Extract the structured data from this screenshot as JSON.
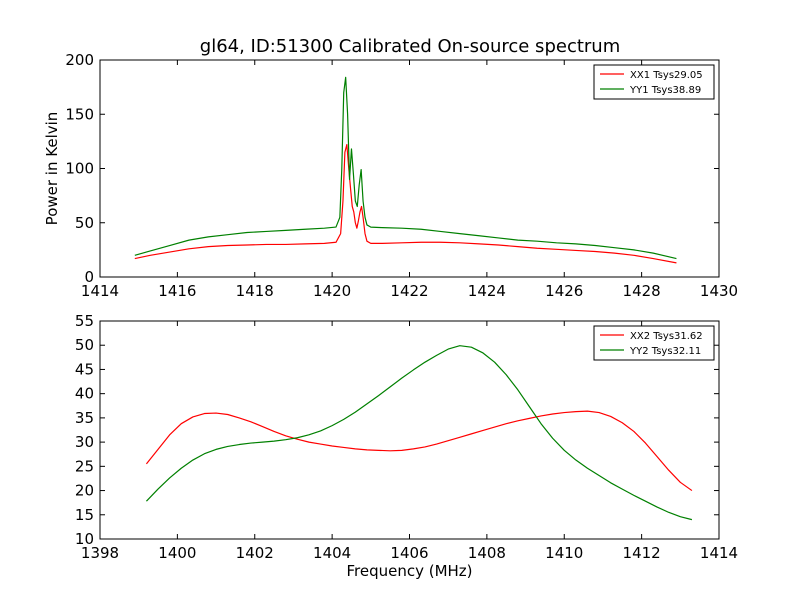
{
  "figure": {
    "title": "gl64, ID:51300 Calibrated On-source spectrum"
  },
  "chart_data": [
    {
      "type": "line",
      "title": "gl64, ID:51300 Calibrated On-source spectrum",
      "xlabel": "",
      "ylabel": "Power in Kelvin",
      "xlim": [
        1414,
        1430
      ],
      "ylim": [
        0,
        200
      ],
      "xticks": [
        1414,
        1416,
        1418,
        1420,
        1422,
        1424,
        1426,
        1428,
        1430
      ],
      "yticks": [
        0,
        50,
        100,
        150,
        200
      ],
      "grid": false,
      "legend_position": "top-right",
      "series": [
        {
          "name": "XX1 Tsys29.05",
          "color": "#ff0000",
          "x": [
            1414.9,
            1415.3,
            1415.8,
            1416.3,
            1416.8,
            1417.3,
            1417.8,
            1418.3,
            1418.8,
            1419.3,
            1419.8,
            1420.1,
            1420.22,
            1420.28,
            1420.33,
            1420.38,
            1420.43,
            1420.48,
            1420.52,
            1420.56,
            1420.6,
            1420.64,
            1420.68,
            1420.72,
            1420.76,
            1420.8,
            1420.85,
            1420.9,
            1421.0,
            1421.3,
            1421.8,
            1422.3,
            1422.8,
            1423.3,
            1423.8,
            1424.3,
            1424.8,
            1425.3,
            1425.8,
            1426.3,
            1426.8,
            1427.3,
            1427.8,
            1428.3,
            1428.9
          ],
          "y": [
            17,
            20,
            23,
            26,
            28,
            29,
            29.5,
            30,
            30,
            30.5,
            31,
            32,
            40,
            70,
            115,
            122,
            100,
            80,
            65,
            60,
            50,
            45,
            52,
            60,
            65,
            55,
            40,
            33,
            31,
            31,
            31.5,
            32,
            32,
            31.5,
            30.5,
            29.5,
            28,
            26.5,
            25.5,
            24.5,
            23.5,
            22,
            20,
            17,
            13
          ]
        },
        {
          "name": "YY1 Tsys38.89",
          "color": "#008000",
          "x": [
            1414.9,
            1415.3,
            1415.8,
            1416.3,
            1416.8,
            1417.3,
            1417.8,
            1418.3,
            1418.8,
            1419.3,
            1419.8,
            1420.1,
            1420.2,
            1420.25,
            1420.3,
            1420.35,
            1420.4,
            1420.45,
            1420.5,
            1420.55,
            1420.6,
            1420.65,
            1420.7,
            1420.75,
            1420.8,
            1420.85,
            1420.9,
            1421.0,
            1421.3,
            1421.8,
            1422.3,
            1422.8,
            1423.3,
            1423.8,
            1424.3,
            1424.8,
            1425.3,
            1425.8,
            1426.3,
            1426.8,
            1427.3,
            1427.8,
            1428.3,
            1428.9
          ],
          "y": [
            20,
            24,
            29,
            34,
            37,
            39,
            41,
            42,
            43,
            44,
            45,
            46,
            55,
            100,
            170,
            184,
            150,
            90,
            118,
            95,
            70,
            65,
            85,
            99,
            70,
            55,
            48,
            46,
            45.5,
            45,
            44,
            42,
            40,
            38,
            36,
            34,
            33,
            31.5,
            30.5,
            29,
            27,
            25,
            22,
            17
          ]
        }
      ]
    },
    {
      "type": "line",
      "title": "",
      "xlabel": "Frequency (MHz)",
      "ylabel": "",
      "xlim": [
        1398,
        1414
      ],
      "ylim": [
        10,
        55
      ],
      "xticks": [
        1398,
        1400,
        1402,
        1404,
        1406,
        1408,
        1410,
        1412,
        1414
      ],
      "yticks": [
        10,
        15,
        20,
        25,
        30,
        35,
        40,
        45,
        50,
        55
      ],
      "grid": false,
      "legend_position": "top-right",
      "series": [
        {
          "name": "XX2 Tsys31.62",
          "color": "#ff0000",
          "x": [
            1399.2,
            1399.5,
            1399.8,
            1400.1,
            1400.4,
            1400.7,
            1401.0,
            1401.3,
            1401.6,
            1401.9,
            1402.2,
            1402.5,
            1402.8,
            1403.1,
            1403.4,
            1403.7,
            1404.0,
            1404.3,
            1404.6,
            1404.9,
            1405.2,
            1405.5,
            1405.8,
            1406.1,
            1406.4,
            1406.7,
            1407.0,
            1407.3,
            1407.6,
            1407.9,
            1408.2,
            1408.5,
            1408.8,
            1409.1,
            1409.4,
            1409.7,
            1410.0,
            1410.3,
            1410.6,
            1410.9,
            1411.2,
            1411.5,
            1411.8,
            1412.1,
            1412.4,
            1412.7,
            1413.0,
            1413.3
          ],
          "y": [
            25.5,
            28.5,
            31.5,
            33.8,
            35.2,
            35.9,
            36.0,
            35.7,
            35.0,
            34.2,
            33.2,
            32.2,
            31.3,
            30.6,
            30.0,
            29.6,
            29.2,
            28.9,
            28.6,
            28.4,
            28.3,
            28.2,
            28.3,
            28.6,
            29.0,
            29.6,
            30.3,
            31.0,
            31.7,
            32.4,
            33.1,
            33.8,
            34.4,
            34.9,
            35.4,
            35.8,
            36.1,
            36.3,
            36.4,
            36.1,
            35.3,
            34.0,
            32.2,
            29.8,
            27.0,
            24.2,
            21.7,
            20.0
          ]
        },
        {
          "name": "YY2 Tsys32.11",
          "color": "#008000",
          "x": [
            1399.2,
            1399.5,
            1399.8,
            1400.1,
            1400.4,
            1400.7,
            1401.0,
            1401.3,
            1401.6,
            1401.9,
            1402.2,
            1402.5,
            1402.8,
            1403.1,
            1403.4,
            1403.7,
            1404.0,
            1404.3,
            1404.6,
            1404.9,
            1405.2,
            1405.5,
            1405.8,
            1406.1,
            1406.4,
            1406.7,
            1407.0,
            1407.3,
            1407.6,
            1407.9,
            1408.2,
            1408.5,
            1408.8,
            1409.1,
            1409.4,
            1409.7,
            1410.0,
            1410.3,
            1410.6,
            1410.9,
            1411.2,
            1411.5,
            1411.8,
            1412.1,
            1412.4,
            1412.7,
            1413.0,
            1413.3
          ],
          "y": [
            17.8,
            20.3,
            22.6,
            24.6,
            26.3,
            27.6,
            28.5,
            29.1,
            29.5,
            29.8,
            30.0,
            30.2,
            30.5,
            30.9,
            31.5,
            32.3,
            33.4,
            34.7,
            36.2,
            37.9,
            39.6,
            41.4,
            43.2,
            44.9,
            46.5,
            47.9,
            49.2,
            49.9,
            49.6,
            48.4,
            46.5,
            43.9,
            40.8,
            37.3,
            33.8,
            30.8,
            28.3,
            26.3,
            24.6,
            23.1,
            21.6,
            20.3,
            19.0,
            17.8,
            16.6,
            15.5,
            14.6,
            14.0
          ]
        }
      ]
    }
  ]
}
